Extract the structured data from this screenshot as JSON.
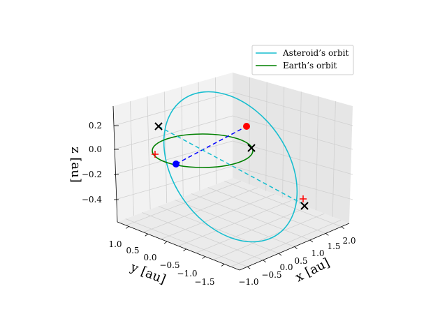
{
  "chart_data": {
    "type": "line",
    "projection": "3d",
    "axes": {
      "x": {
        "label": "x [au]",
        "ticks": [
          "−1.0",
          "−0.5",
          "0.0",
          "0.5",
          "1.0",
          "1.5",
          "2.0"
        ],
        "range": [
          -1.15,
          2.15
        ]
      },
      "y": {
        "label": "y [au]",
        "ticks": [
          "1.0",
          "0.5",
          "0.0",
          "−0.5",
          "−1.0",
          "−1.5"
        ],
        "range": [
          -1.9,
          1.15
        ]
      },
      "z": {
        "label": "z [au]",
        "ticks": [
          "0.2",
          "0.0",
          "−0.2",
          "−0.4"
        ],
        "range": [
          -0.6,
          0.35
        ]
      }
    },
    "grid": true,
    "legend": {
      "position": "top-right",
      "entries": [
        "Asteroid’s orbit",
        "Earth’s orbit"
      ]
    },
    "series": [
      {
        "name": "Asteroid’s orbit",
        "color": "#17becf",
        "shape": "ellipse",
        "semi_major_axis_au": 1.55,
        "inclination_deg": 18
      },
      {
        "name": "Earth’s orbit",
        "color": "#008000",
        "shape": "circle",
        "radius_au": 1.0
      }
    ],
    "markers": [
      {
        "kind": "point",
        "color": "#ff0000",
        "desc": "asteroid position"
      },
      {
        "kind": "point",
        "color": "#0000ff",
        "desc": "Earth position"
      },
      {
        "kind": "x",
        "color": "#000000",
        "count": 3
      },
      {
        "kind": "plus",
        "color": "#ff0000",
        "count": 2
      }
    ],
    "dashed_lines": [
      {
        "color": "#0000ff",
        "desc": "Earth to asteroid"
      },
      {
        "color": "#17becf",
        "desc": "line of nodes"
      }
    ]
  }
}
